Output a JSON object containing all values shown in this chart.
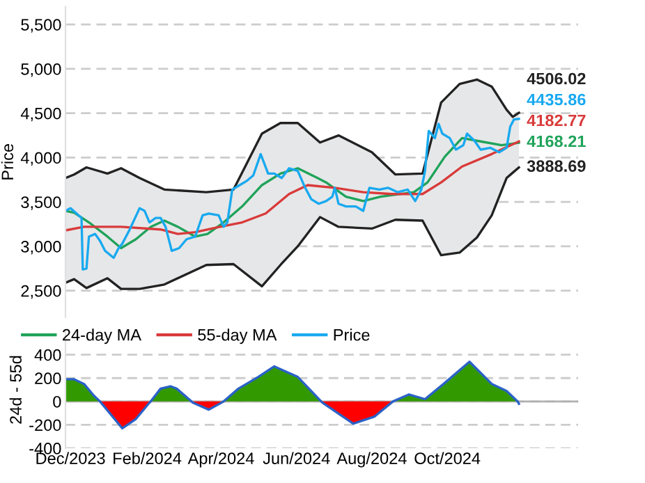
{
  "chart_data": [
    {
      "type": "line",
      "ylabel": "Price",
      "xlim": [
        "2023-11-27",
        "2025-01-15"
      ],
      "ylim": [
        2200,
        5700
      ],
      "yticks": [
        {
          "value": 2500,
          "label": "2,500"
        },
        {
          "value": 3000,
          "label": "3,000"
        },
        {
          "value": 3500,
          "label": "3,500"
        },
        {
          "value": 4000,
          "label": "4,000"
        },
        {
          "value": 4500,
          "label": "4,500"
        },
        {
          "value": 5000,
          "label": "5,000"
        },
        {
          "value": 5500,
          "label": "5,500"
        }
      ],
      "tick_labels": "y",
      "grid": "y",
      "legend": "bottom",
      "series": [
        {
          "color": "#222222",
          "x": [
            "2023-11-27",
            "2023-12-04",
            "2023-12-14",
            "2023-12-31",
            "2024-01-11",
            "2024-01-26",
            "2024-02-15",
            "2024-03-20",
            "2024-04-11",
            "2024-05-04",
            "2024-05-19",
            "2024-06-02",
            "2024-06-20",
            "2024-07-05",
            "2024-08-01",
            "2024-08-20",
            "2024-09-11",
            "2024-09-26",
            "2024-10-11",
            "2024-10-25",
            "2024-11-06",
            "2024-11-18",
            "2024-11-23",
            "2024-11-28"
          ],
          "values": [
            3770,
            3810,
            3890,
            3820,
            3880,
            3770,
            3640,
            3610,
            3640,
            4270,
            4390,
            4390,
            4170,
            4250,
            4060,
            3810,
            3820,
            4620,
            4830,
            4880,
            4800,
            4540,
            4460,
            4506.02
          ],
          "upper": [
            3770,
            3810,
            3890,
            3820,
            3880,
            3770,
            3640,
            3610,
            3640,
            4270,
            4390,
            4390,
            4170,
            4250,
            4060,
            3810,
            3820,
            4620,
            4830,
            4880,
            4800,
            4540,
            4460,
            4506.02
          ],
          "lower": [
            2590,
            2630,
            2530,
            2640,
            2520,
            2520,
            2570,
            2790,
            2800,
            2550,
            2790,
            3000,
            3330,
            3220,
            3200,
            3300,
            3290,
            2900,
            2930,
            3100,
            3350,
            3770,
            3830,
            3888.69
          ],
          "value_labels": [
            null,
            null,
            null,
            null,
            null,
            null,
            null,
            null,
            null,
            null,
            null,
            null,
            null,
            null,
            null,
            null,
            null,
            null,
            null,
            null,
            null,
            null,
            null,
            "4506.02"
          ]
        },
        {
          "color": "#222222",
          "x": [
            "2023-11-27",
            "2023-12-04",
            "2023-12-14",
            "2023-12-31",
            "2024-01-11",
            "2024-01-26",
            "2024-02-15",
            "2024-03-20",
            "2024-04-11",
            "2024-05-04",
            "2024-05-19",
            "2024-06-02",
            "2024-06-20",
            "2024-07-05",
            "2024-08-01",
            "2024-08-20",
            "2024-09-11",
            "2024-09-26",
            "2024-10-11",
            "2024-10-25",
            "2024-11-06",
            "2024-11-18",
            "2024-11-23",
            "2024-11-28"
          ],
          "values": [
            2590,
            2630,
            2530,
            2640,
            2520,
            2520,
            2570,
            2790,
            2800,
            2550,
            2790,
            3000,
            3330,
            3220,
            3200,
            3300,
            3290,
            2900,
            2930,
            3100,
            3350,
            3770,
            3830,
            3888.69
          ],
          "value_labels": [
            null,
            null,
            null,
            null,
            null,
            null,
            null,
            null,
            null,
            null,
            null,
            null,
            null,
            null,
            null,
            null,
            null,
            null,
            null,
            null,
            null,
            null,
            null,
            "3888.69"
          ]
        },
        {
          "name": "24-day MA",
          "color": "#1fa35a",
          "x": [
            "2023-11-27",
            "2023-12-04",
            "2023-12-16",
            "2023-12-31",
            "2024-01-11",
            "2024-01-23",
            "2024-02-04",
            "2024-02-15",
            "2024-02-26",
            "2024-03-11",
            "2024-03-21",
            "2024-04-03",
            "2024-04-18",
            "2024-05-04",
            "2024-05-19",
            "2024-06-02",
            "2024-06-18",
            "2024-06-25",
            "2024-07-11",
            "2024-07-25",
            "2024-08-08",
            "2024-09-04",
            "2024-09-15",
            "2024-09-29",
            "2024-10-13",
            "2024-10-25",
            "2024-11-14",
            "2024-11-28"
          ],
          "values": [
            3400,
            3380,
            3270,
            3110,
            2980,
            3080,
            3220,
            3290,
            3220,
            3110,
            3140,
            3270,
            3450,
            3690,
            3820,
            3880,
            3770,
            3720,
            3560,
            3510,
            3560,
            3610,
            3720,
            4010,
            4220,
            4190,
            4140,
            4168.21
          ],
          "value_labels": [
            null,
            null,
            null,
            null,
            null,
            null,
            null,
            null,
            null,
            null,
            null,
            null,
            null,
            null,
            null,
            null,
            null,
            null,
            null,
            null,
            null,
            null,
            null,
            null,
            null,
            null,
            null,
            "4168.21"
          ]
        },
        {
          "name": "55-day MA",
          "color": "#d93a3a",
          "x": [
            "2023-11-27",
            "2023-12-12",
            "2024-01-11",
            "2024-02-12",
            "2024-02-26",
            "2024-03-11",
            "2024-03-31",
            "2024-04-18",
            "2024-05-07",
            "2024-05-26",
            "2024-06-10",
            "2024-07-02",
            "2024-07-25",
            "2024-08-17",
            "2024-09-11",
            "2024-09-26",
            "2024-10-13",
            "2024-11-06",
            "2024-11-28"
          ],
          "values": [
            3180,
            3220,
            3220,
            3190,
            3140,
            3160,
            3220,
            3270,
            3370,
            3590,
            3690,
            3660,
            3610,
            3590,
            3590,
            3720,
            3900,
            4040,
            4182.77
          ],
          "value_labels": [
            null,
            null,
            null,
            null,
            null,
            null,
            null,
            null,
            null,
            null,
            null,
            null,
            null,
            null,
            null,
            null,
            null,
            null,
            "4182.77"
          ]
        },
        {
          "name": "Price",
          "color": "#18a9f0",
          "x": [
            "2023-11-27",
            "2023-12-01",
            "2023-12-06",
            "2023-12-10",
            "2023-12-11",
            "2023-12-14",
            "2023-12-16",
            "2023-12-21",
            "2023-12-25",
            "2023-12-29",
            "2024-01-05",
            "2024-01-09",
            "2024-01-12",
            "2024-01-18",
            "2024-01-26",
            "2024-01-30",
            "2024-02-03",
            "2024-02-08",
            "2024-02-12",
            "2024-02-16",
            "2024-02-21",
            "2024-02-27",
            "2024-03-04",
            "2024-03-11",
            "2024-03-17",
            "2024-03-22",
            "2024-03-30",
            "2024-04-03",
            "2024-04-06",
            "2024-04-10",
            "2024-04-16",
            "2024-04-22",
            "2024-04-27",
            "2024-05-03",
            "2024-05-09",
            "2024-05-14",
            "2024-05-20",
            "2024-05-26",
            "2024-06-02",
            "2024-06-08",
            "2024-06-13",
            "2024-06-19",
            "2024-06-25",
            "2024-06-30",
            "2024-07-02",
            "2024-07-05",
            "2024-07-11",
            "2024-07-19",
            "2024-07-25",
            "2024-07-30",
            "2024-08-07",
            "2024-08-14",
            "2024-08-22",
            "2024-08-30",
            "2024-09-05",
            "2024-09-10",
            "2024-09-13",
            "2024-09-16",
            "2024-09-21",
            "2024-09-24",
            "2024-09-27",
            "2024-10-03",
            "2024-10-08",
            "2024-10-14",
            "2024-10-17",
            "2024-10-23",
            "2024-10-28",
            "2024-11-05",
            "2024-11-12",
            "2024-11-18",
            "2024-11-21",
            "2024-11-24",
            "2024-11-28"
          ],
          "values": [
            3400,
            3430,
            3370,
            3320,
            2740,
            2750,
            3110,
            3140,
            3060,
            2950,
            2870,
            2980,
            3030,
            3190,
            3430,
            3400,
            3270,
            3320,
            3320,
            3220,
            2950,
            2980,
            3080,
            3110,
            3350,
            3370,
            3350,
            3220,
            3270,
            3640,
            3690,
            3740,
            3800,
            4040,
            3820,
            3820,
            3770,
            3880,
            3850,
            3660,
            3530,
            3480,
            3510,
            3560,
            3660,
            3480,
            3450,
            3450,
            3400,
            3660,
            3640,
            3660,
            3610,
            3640,
            3510,
            3640,
            3850,
            4300,
            4220,
            4380,
            4270,
            4220,
            4090,
            4140,
            4270,
            4190,
            4090,
            4110,
            4060,
            4110,
            4350,
            4430,
            4435.86
          ],
          "value_labels": [
            null,
            null,
            null,
            null,
            null,
            null,
            null,
            null,
            null,
            null,
            null,
            null,
            null,
            null,
            null,
            null,
            null,
            null,
            null,
            null,
            null,
            null,
            null,
            null,
            null,
            null,
            null,
            null,
            null,
            null,
            null,
            null,
            null,
            null,
            null,
            null,
            null,
            null,
            null,
            null,
            null,
            null,
            null,
            null,
            null,
            null,
            null,
            null,
            null,
            null,
            null,
            null,
            null,
            null,
            null,
            null,
            null,
            null,
            null,
            null,
            null,
            null,
            null,
            null,
            null,
            null,
            null,
            null,
            null,
            null,
            null,
            null,
            "4435.86"
          ]
        }
      ]
    },
    {
      "type": "area",
      "ylabel": "24d - 55d",
      "xlim": [
        "2023-11-27",
        "2025-01-15"
      ],
      "ylim": [
        -400,
        600
      ],
      "yticks": [
        -400,
        -200,
        0,
        200,
        400
      ],
      "xticks": [
        {
          "value": "2023-12-01",
          "label": "Dec/2023"
        },
        {
          "value": "2024-02-01",
          "label": "Feb/2024"
        },
        {
          "value": "2024-04-01",
          "label": "Apr/2024"
        },
        {
          "value": "2024-06-01",
          "label": "Jun/2024"
        },
        {
          "value": "2024-08-01",
          "label": "Aug/2024"
        },
        {
          "value": "2024-10-01",
          "label": "Oct/2024"
        }
      ],
      "grid": "y",
      "ref_lines": [
        {
          "axis": "y",
          "value": 0,
          "color": "#b0b0b0"
        }
      ],
      "x": [
        "2023-11-27",
        "2023-12-04",
        "2023-12-12",
        "2023-12-20",
        "2023-12-25",
        "2024-01-12",
        "2024-01-23",
        "2024-02-03",
        "2024-02-04",
        "2024-02-12",
        "2024-02-20",
        "2024-02-25",
        "2024-03-08",
        "2024-03-09",
        "2024-03-22",
        "2024-04-03",
        "2024-04-15",
        "2024-05-01",
        "2024-05-14",
        "2024-06-02",
        "2024-06-21",
        "2024-06-22",
        "2024-07-17",
        "2024-08-03",
        "2024-08-18",
        "2024-08-31",
        "2024-09-13",
        "2024-09-28",
        "2024-10-19",
        "2024-11-06",
        "2024-11-18",
        "2024-11-27",
        "2024-11-28"
      ],
      "series": [
        {
          "color": "#339900",
          "values": [
            190,
            190,
            150,
            50,
            0,
            null,
            null,
            null,
            0,
            110,
            130,
            110,
            0,
            null,
            null,
            0,
            110,
            210,
            300,
            210,
            0,
            null,
            null,
            null,
            0,
            60,
            20,
            150,
            340,
            150,
            90,
            0,
            null
          ]
        },
        {
          "color": "#ff0000",
          "values": [
            null,
            null,
            null,
            null,
            0,
            -230,
            -150,
            -10,
            0,
            null,
            null,
            null,
            0,
            -10,
            -70,
            0,
            null,
            null,
            null,
            null,
            0,
            -10,
            -190,
            -130,
            0,
            null,
            null,
            null,
            null,
            null,
            null,
            null,
            null
          ]
        },
        {
          "type": "line",
          "color": "#2a62c8",
          "values": [
            190,
            190,
            150,
            50,
            0,
            -230,
            -150,
            -10,
            0,
            110,
            130,
            110,
            0,
            -10,
            -70,
            0,
            110,
            210,
            300,
            210,
            0,
            -10,
            -190,
            -130,
            0,
            60,
            20,
            150,
            340,
            150,
            90,
            0,
            -20
          ]
        }
      ]
    }
  ]
}
